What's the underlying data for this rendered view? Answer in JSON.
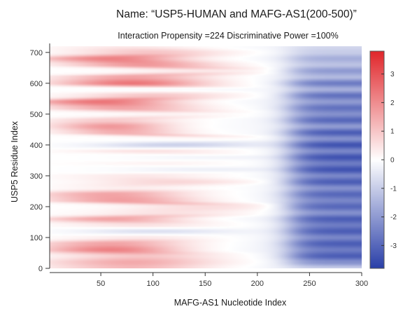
{
  "chart_data": {
    "type": "heatmap",
    "title": "Name: “USP5-HUMAN and MAFG-AS1(200-500)”",
    "subtitle": "Interaction Propensity =224  Discriminative Power =100%",
    "xlabel": "MAFG-AS1 Nucleotide Index",
    "ylabel": "USP5 Residue Index",
    "xlim": [
      1,
      300
    ],
    "ylim": [
      0,
      720
    ],
    "x_ticks": [
      50,
      100,
      150,
      200,
      250,
      300
    ],
    "y_ticks": [
      0,
      100,
      200,
      300,
      400,
      500,
      600,
      700
    ],
    "colorbar": {
      "ticks": [
        3,
        2,
        1,
        0,
        -1,
        -2,
        -3
      ],
      "range": [
        -3.8,
        3.8
      ],
      "low_color": "#2a3fa8",
      "mid_color": "#ffffff",
      "high_color": "#e0262b"
    },
    "y_samples": [
      0,
      20,
      40,
      60,
      80,
      100,
      120,
      140,
      160,
      180,
      200,
      220,
      240,
      260,
      280,
      300,
      320,
      340,
      360,
      380,
      400,
      420,
      440,
      460,
      480,
      500,
      520,
      540,
      560,
      580,
      600,
      620,
      640,
      660,
      680,
      700,
      720
    ],
    "row_amplitude": [
      1.2,
      1.5,
      1.0,
      2.2,
      1.6,
      0.4,
      -0.6,
      0.5,
      1.6,
      0.5,
      0.6,
      1.7,
      1.6,
      0.3,
      0.7,
      0.4,
      -0.3,
      0.2,
      -0.2,
      0.5,
      -0.9,
      0.1,
      1.4,
      1.8,
      0.9,
      0.2,
      1.6,
      2.4,
      1.0,
      -0.1,
      2.4,
      1.6,
      0.4,
      1.8,
      2.2,
      1.0,
      0.4
    ],
    "row_center": [
      80,
      80,
      90,
      60,
      60,
      90,
      100,
      90,
      60,
      120,
      150,
      70,
      60,
      80,
      120,
      90,
      150,
      110,
      160,
      100,
      120,
      150,
      70,
      60,
      60,
      120,
      70,
      50,
      100,
      110,
      80,
      80,
      150,
      90,
      60,
      100,
      80
    ],
    "row_width": [
      95,
      100,
      95,
      85,
      90,
      90,
      90,
      90,
      85,
      95,
      95,
      90,
      90,
      90,
      95,
      95,
      95,
      95,
      95,
      95,
      95,
      95,
      70,
      70,
      80,
      95,
      90,
      90,
      90,
      90,
      90,
      90,
      90,
      90,
      90,
      90,
      90
    ],
    "row_right_bias": [
      0.8,
      0.5,
      0.6,
      0.7,
      0.6,
      0.7,
      0.6,
      0.4,
      0.6,
      0.4,
      0.6,
      0.5,
      0.4,
      0.4,
      0.5,
      0.5,
      0.5,
      0.5,
      0.5,
      0.5,
      0.5,
      0.5,
      0.4,
      0.5,
      0.5,
      0.5,
      0.5,
      0.6,
      0.4,
      0.5,
      0.6,
      0.5,
      0.6,
      0.4,
      0.5,
      0.5,
      0.6
    ],
    "right_region_values": [
      -1.0,
      -2.2,
      -3.2,
      -2.6,
      -3.2,
      -2.4,
      -3.2,
      -2.6,
      -3.2,
      -2.2,
      -3.0,
      -2.4,
      -3.0,
      -2.2,
      -3.2,
      -2.4,
      -3.4,
      -2.6,
      -3.4,
      -2.4,
      -3.4,
      -2.2,
      -3.2,
      -2.0,
      -3.0,
      -2.2,
      -2.8,
      -2.0,
      -2.8,
      -1.6,
      -2.6,
      -1.4,
      -2.0,
      -1.2,
      -1.6,
      -1.0,
      -0.8
    ]
  }
}
